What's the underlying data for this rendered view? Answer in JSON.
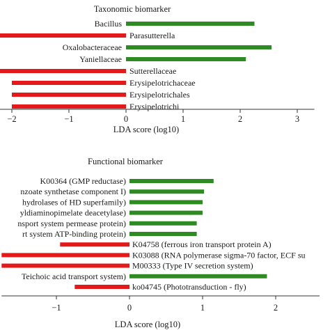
{
  "colors": {
    "positive": "#2e8b23",
    "negative": "#e41a1a",
    "axis": "#333333"
  },
  "chart_data": [
    {
      "type": "bar",
      "orientation": "horizontal",
      "title": "Taxonomic biomarker",
      "xlabel": "LDA score (log10)",
      "xlim": [
        -2.7,
        3.3
      ],
      "xticks": [
        -2,
        -1,
        0,
        1,
        2,
        3
      ],
      "xtick_labels": [
        "−2",
        "−1",
        "0",
        "1",
        "2",
        "3"
      ],
      "series": [
        {
          "values": [
            2.25,
            -2.7,
            2.55,
            2.1,
            -2.7,
            -2.0,
            -2.0,
            -2.0
          ]
        }
      ],
      "categories": [
        "Bacillus",
        "",
        "Oxalobacteraceae",
        "Yaniellaceae",
        "",
        "",
        "",
        ""
      ],
      "labels_right": [
        "",
        "Parasutterella",
        "",
        "",
        "Sutterellaceae",
        "Erysipelotrichaceae",
        "Erysipelotrichales",
        "Erysipelotrichi"
      ],
      "grid": false
    },
    {
      "type": "bar",
      "orientation": "horizontal",
      "title": "Functional biomarker",
      "xlabel": "LDA score (log10)",
      "xlim": [
        -1.75,
        2.6
      ],
      "xticks": [
        -1,
        0,
        1,
        2
      ],
      "xtick_labels": [
        "−1",
        "0",
        "1",
        "2"
      ],
      "series": [
        {
          "values": [
            1.15,
            1.02,
            1.0,
            1.0,
            0.92,
            0.92,
            -0.95,
            -1.75,
            -1.75,
            1.88,
            -0.75
          ]
        }
      ],
      "categories": [
        "K00364 (GMP reductase)",
        "nzoate synthetase component I)",
        "hydrolases of HD superfamily)",
        "yldiaminopimelate deacetylase)",
        "nsport system permease protein)",
        "rt system ATP-binding protein)",
        "",
        "",
        "",
        "Teichoic acid transport system)",
        ""
      ],
      "labels_right": [
        "",
        "",
        "",
        "",
        "",
        "",
        "K04758 (ferrous iron transport protein A)",
        "K03088 (RNA polymerase sigma-70 factor, ECF su",
        "M00333 (Type IV secretion system)",
        "",
        "ko04745 (Phototransduction - fly)"
      ],
      "grid": false
    }
  ]
}
